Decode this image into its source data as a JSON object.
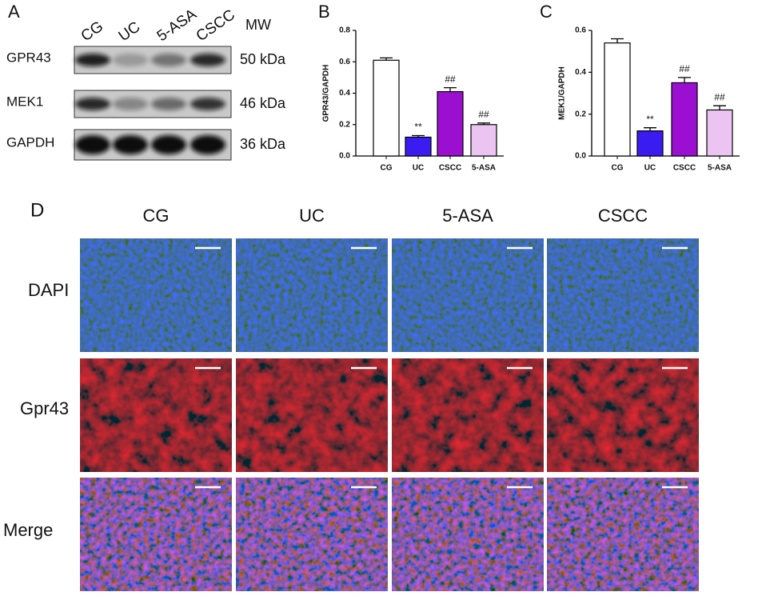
{
  "panel_a": {
    "letter": "A",
    "lanes": [
      "CG",
      "UC",
      "5-ASA",
      "CSCC"
    ],
    "mw_header": "MW",
    "rows": [
      {
        "label": "GPR43",
        "mw": "50 kDa"
      },
      {
        "label": "MEK1",
        "mw": "46 kDa"
      },
      {
        "label": "GAPDH",
        "mw": "36 kDa"
      }
    ]
  },
  "chart_data": [
    {
      "type": "bar",
      "panel": "B",
      "ylabel": "GPR43/GAPDH",
      "categories": [
        "CG",
        "UC",
        "CSCC",
        "5-ASA"
      ],
      "values": [
        0.61,
        0.12,
        0.41,
        0.2
      ],
      "errors": [
        0.015,
        0.01,
        0.025,
        0.01
      ],
      "colors": [
        "#ffffff",
        "#3a1cf0",
        "#9b10d0",
        "#ecc4f2"
      ],
      "annotations": [
        null,
        "**",
        "##",
        "##"
      ],
      "ylim": [
        0,
        0.8
      ],
      "yticks": [
        {
          "value": 0,
          "label": "0.0"
        },
        0.2,
        0.4,
        0.6,
        0.8
      ]
    },
    {
      "type": "bar",
      "panel": "C",
      "ylabel": "MEK1/GAPDH",
      "categories": [
        "CG",
        "UC",
        "CSCC",
        "5-ASA"
      ],
      "values": [
        0.54,
        0.12,
        0.35,
        0.22
      ],
      "errors": [
        0.02,
        0.015,
        0.025,
        0.02
      ],
      "colors": [
        "#ffffff",
        "#3a1cf0",
        "#9b10d0",
        "#ecc4f2"
      ],
      "annotations": [
        null,
        "**",
        "##",
        "##"
      ],
      "ylim": [
        0,
        0.6
      ],
      "yticks": [
        {
          "value": 0,
          "label": "0.0"
        },
        0.2,
        0.4,
        0.6
      ]
    }
  ],
  "panel_d": {
    "letter": "D",
    "columns": [
      "CG",
      "UC",
      "5-ASA",
      "CSCC"
    ],
    "rows": [
      "DAPI",
      "Gpr43",
      "Merge"
    ]
  }
}
